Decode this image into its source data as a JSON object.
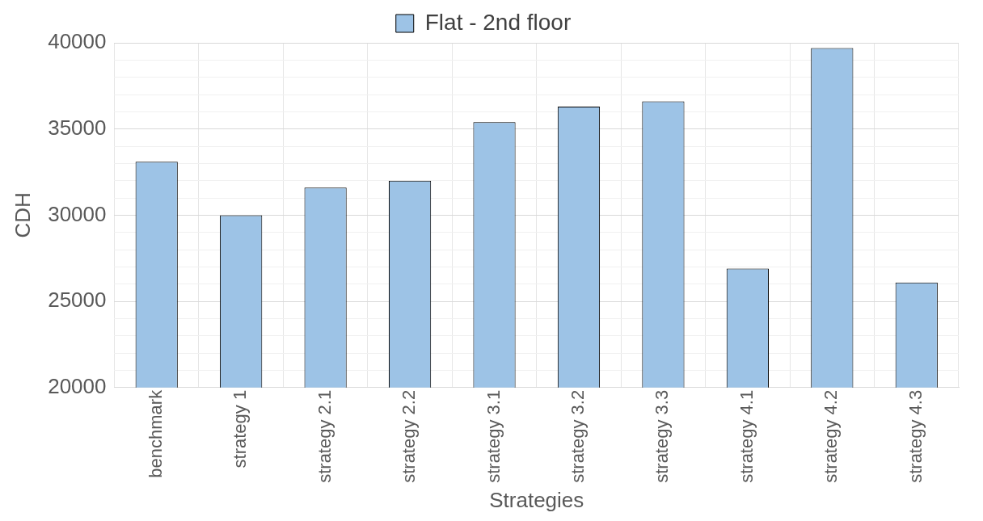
{
  "chart_data": {
    "type": "bar",
    "xlabel": "Strategies",
    "ylabel": "CDH",
    "categories": [
      "benchmark",
      "strategy 1",
      "strategy 2.1",
      "strategy 2.2",
      "strategy 3.1",
      "strategy 3.2",
      "strategy 3.3",
      "strategy 4.1",
      "strategy 4.2",
      "strategy 4.3"
    ],
    "series": [
      {
        "name": "Flat - 2nd floor",
        "color": "#9dc3e6",
        "values": [
          33100,
          30000,
          31600,
          32000,
          35400,
          36300,
          36600,
          26900,
          39700,
          26100
        ]
      }
    ],
    "ylim": [
      20000,
      40000
    ],
    "yticks": [
      20000,
      {
        "value": 21000,
        "label": null
      },
      {
        "value": 22000,
        "label": null
      },
      {
        "value": 23000,
        "label": null
      },
      {
        "value": 24000,
        "label": null
      },
      25000,
      {
        "value": 26000,
        "label": null
      },
      {
        "value": 27000,
        "label": null
      },
      {
        "value": 28000,
        "label": null
      },
      {
        "value": 29000,
        "label": null
      },
      30000,
      {
        "value": 31000,
        "label": null
      },
      {
        "value": 32000,
        "label": null
      },
      {
        "value": 33000,
        "label": null
      },
      {
        "value": 34000,
        "label": null
      },
      35000,
      {
        "value": 36000,
        "label": null
      },
      {
        "value": 37000,
        "label": null
      },
      {
        "value": 38000,
        "label": null
      },
      {
        "value": 39000,
        "label": null
      },
      40000
    ],
    "grid": true,
    "legend": "top"
  }
}
